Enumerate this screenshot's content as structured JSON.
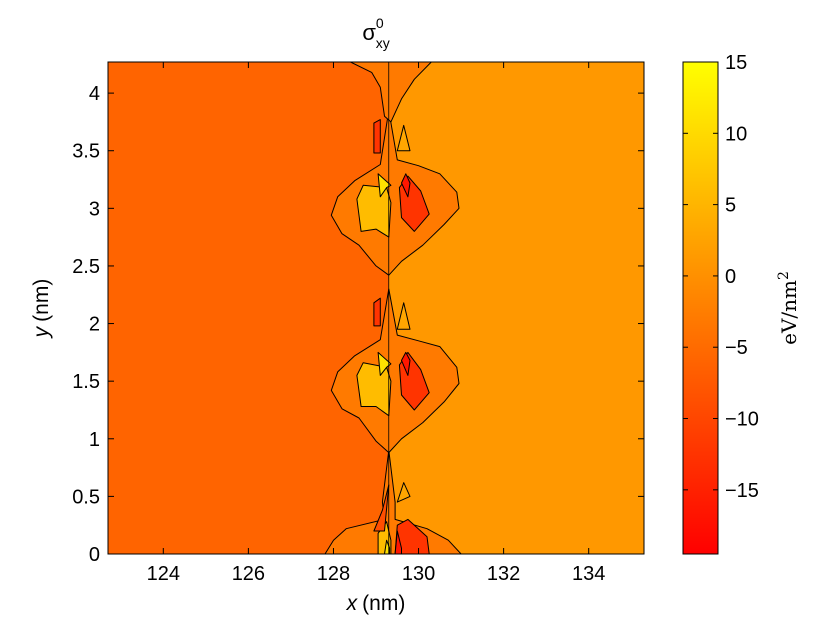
{
  "chart_data": {
    "type": "heatmap",
    "subtype": "filled-contour",
    "title": {
      "symbol": "σ",
      "superscript": "0",
      "subscript": "xy"
    },
    "xlabel": {
      "var": "x",
      "unit": "(nm)"
    },
    "ylabel": {
      "var": "y",
      "unit": "(nm)"
    },
    "xlim": [
      122.7,
      135.3
    ],
    "ylim": [
      0,
      4.27
    ],
    "xticks": [
      124,
      126,
      128,
      130,
      132,
      134
    ],
    "xtick_labels": [
      "124",
      "126",
      "128",
      "130",
      "132",
      "134"
    ],
    "yticks": [
      0,
      0.5,
      1,
      1.5,
      2,
      2.5,
      3,
      3.5,
      4
    ],
    "ytick_labels": [
      "0",
      "0.5",
      "1",
      "1.5",
      "2",
      "2.5",
      "3",
      "3.5",
      "4"
    ],
    "colorbar": {
      "label": "eV/nm",
      "label_superscript": "2",
      "lim": [
        -19.5,
        15
      ],
      "ticks": [
        15,
        10,
        5,
        0,
        -5,
        -10,
        -15
      ],
      "tick_labels": [
        "15",
        "10",
        "5",
        "0",
        "−5",
        "−10",
        "−15"
      ],
      "colormap": "autumn",
      "colors": {
        "low": "#ff0000",
        "high": "#ffff00"
      }
    },
    "background_regions": [
      {
        "name": "left",
        "x_from": 122.7,
        "x_to": 129.3,
        "value": -6.0
      },
      {
        "name": "right",
        "x_from": 129.3,
        "x_to": 135.3,
        "value": 1.0
      }
    ],
    "features": [
      {
        "type": "band",
        "value": -3.0,
        "points": [
          [
            127.8,
            0
          ],
          [
            128.0,
            0.12
          ],
          [
            128.3,
            0.22
          ],
          [
            129.2,
            0.3
          ],
          [
            129.15,
            0.45
          ],
          [
            129.3,
            0.9
          ],
          [
            129.45,
            0.45
          ],
          [
            129.45,
            0.3
          ],
          [
            130.2,
            0.22
          ],
          [
            130.7,
            0.12
          ],
          [
            131.0,
            0
          ]
        ]
      },
      {
        "type": "band",
        "value": -3.0,
        "points": [
          [
            128.5,
            1.72
          ],
          [
            128.1,
            1.58
          ],
          [
            127.95,
            1.42
          ],
          [
            128.2,
            1.26
          ],
          [
            128.6,
            1.18
          ],
          [
            129.0,
            0.98
          ],
          [
            129.3,
            0.88
          ],
          [
            129.6,
            1.0
          ],
          [
            130.1,
            1.14
          ],
          [
            130.6,
            1.32
          ],
          [
            130.95,
            1.48
          ],
          [
            130.9,
            1.62
          ],
          [
            130.5,
            1.8
          ],
          [
            130.0,
            1.85
          ],
          [
            129.5,
            1.9
          ],
          [
            129.3,
            2.3
          ],
          [
            129.1,
            1.86
          ]
        ]
      },
      {
        "type": "band",
        "value": -3.0,
        "points": [
          [
            128.5,
            3.24
          ],
          [
            128.1,
            3.1
          ],
          [
            127.95,
            2.94
          ],
          [
            128.2,
            2.78
          ],
          [
            128.6,
            2.68
          ],
          [
            129.0,
            2.5
          ],
          [
            129.3,
            2.42
          ],
          [
            129.6,
            2.54
          ],
          [
            130.1,
            2.68
          ],
          [
            130.6,
            2.86
          ],
          [
            130.95,
            3.0
          ],
          [
            130.9,
            3.14
          ],
          [
            130.5,
            3.3
          ],
          [
            130.0,
            3.37
          ],
          [
            129.5,
            3.42
          ],
          [
            129.3,
            3.85
          ],
          [
            129.1,
            3.38
          ]
        ]
      },
      {
        "type": "band",
        "value": -3.0,
        "points": [
          [
            128.4,
            4.27
          ],
          [
            128.9,
            4.18
          ],
          [
            129.1,
            4.05
          ],
          [
            129.2,
            3.8
          ],
          [
            129.35,
            3.75
          ],
          [
            129.6,
            3.95
          ],
          [
            129.9,
            4.12
          ],
          [
            130.3,
            4.27
          ]
        ]
      },
      {
        "type": "blob",
        "value": 6.0,
        "points": [
          [
            129.05,
            0
          ],
          [
            129.05,
            0.18
          ],
          [
            129.25,
            0.28
          ],
          [
            129.35,
            0.12
          ],
          [
            129.35,
            0
          ]
        ]
      },
      {
        "type": "blob",
        "value": 11.0,
        "points": [
          [
            129.2,
            0
          ],
          [
            129.25,
            0.12
          ],
          [
            129.32,
            0.05
          ],
          [
            129.32,
            0
          ]
        ]
      },
      {
        "type": "blob",
        "value": -12.5,
        "points": [
          [
            129.45,
            0
          ],
          [
            129.5,
            0.25
          ],
          [
            129.75,
            0.3
          ],
          [
            130.2,
            0.15
          ],
          [
            130.25,
            0
          ]
        ]
      },
      {
        "type": "blob",
        "value": -16.5,
        "points": [
          [
            129.45,
            0
          ],
          [
            129.5,
            0.2
          ],
          [
            129.6,
            0.05
          ],
          [
            129.6,
            0
          ]
        ]
      },
      {
        "type": "blob",
        "value": -9.0,
        "points": [
          [
            128.95,
            0.2
          ],
          [
            129.15,
            0.38
          ],
          [
            129.3,
            0.6
          ],
          [
            129.2,
            0.2
          ]
        ]
      },
      {
        "type": "blob",
        "value": 3.0,
        "points": [
          [
            129.5,
            0.45
          ],
          [
            129.65,
            0.62
          ],
          [
            129.8,
            0.5
          ]
        ]
      },
      {
        "type": "blob",
        "value": 6.0,
        "points": [
          [
            128.65,
            1.28
          ],
          [
            128.55,
            1.55
          ],
          [
            128.7,
            1.66
          ],
          [
            129.25,
            1.62
          ],
          [
            129.35,
            1.5
          ],
          [
            129.3,
            1.2
          ],
          [
            129.0,
            1.28
          ]
        ]
      },
      {
        "type": "blob",
        "value": 11.0,
        "points": [
          [
            129.05,
            1.75
          ],
          [
            129.1,
            1.55
          ],
          [
            129.25,
            1.62
          ],
          [
            129.35,
            1.65
          ]
        ]
      },
      {
        "type": "blob",
        "value": -12.5,
        "points": [
          [
            129.55,
            1.64
          ],
          [
            129.6,
            1.38
          ],
          [
            129.9,
            1.25
          ],
          [
            130.25,
            1.4
          ],
          [
            130.05,
            1.6
          ],
          [
            129.75,
            1.75
          ]
        ]
      },
      {
        "type": "blob",
        "value": -16.5,
        "points": [
          [
            129.6,
            1.68
          ],
          [
            129.75,
            1.55
          ],
          [
            129.8,
            1.68
          ],
          [
            129.7,
            1.75
          ]
        ]
      },
      {
        "type": "blob",
        "value": -12.5,
        "points": [
          [
            128.95,
            1.98
          ],
          [
            128.95,
            2.18
          ],
          [
            129.1,
            2.22
          ],
          [
            129.1,
            1.98
          ]
        ]
      },
      {
        "type": "blob",
        "value": 3.0,
        "points": [
          [
            129.5,
            1.95
          ],
          [
            129.65,
            2.18
          ],
          [
            129.8,
            1.95
          ]
        ]
      },
      {
        "type": "blob",
        "value": 6.0,
        "points": [
          [
            128.65,
            2.8
          ],
          [
            128.55,
            3.08
          ],
          [
            128.7,
            3.2
          ],
          [
            129.25,
            3.18
          ],
          [
            129.35,
            3.05
          ],
          [
            129.3,
            2.75
          ],
          [
            129.0,
            2.82
          ]
        ]
      },
      {
        "type": "blob",
        "value": 11.0,
        "points": [
          [
            129.05,
            3.3
          ],
          [
            129.1,
            3.1
          ],
          [
            129.25,
            3.18
          ],
          [
            129.35,
            3.2
          ]
        ]
      },
      {
        "type": "blob",
        "value": -12.5,
        "points": [
          [
            129.55,
            3.18
          ],
          [
            129.6,
            2.92
          ],
          [
            129.9,
            2.8
          ],
          [
            130.25,
            2.95
          ],
          [
            130.05,
            3.15
          ],
          [
            129.75,
            3.28
          ]
        ]
      },
      {
        "type": "blob",
        "value": -16.5,
        "points": [
          [
            129.6,
            3.22
          ],
          [
            129.75,
            3.1
          ],
          [
            129.8,
            3.22
          ],
          [
            129.7,
            3.3
          ]
        ]
      },
      {
        "type": "blob",
        "value": -12.5,
        "points": [
          [
            128.95,
            3.48
          ],
          [
            128.95,
            3.74
          ],
          [
            129.1,
            3.77
          ],
          [
            129.1,
            3.48
          ]
        ]
      },
      {
        "type": "blob",
        "value": 3.0,
        "points": [
          [
            129.5,
            3.5
          ],
          [
            129.65,
            3.72
          ],
          [
            129.8,
            3.5
          ]
        ]
      }
    ]
  }
}
